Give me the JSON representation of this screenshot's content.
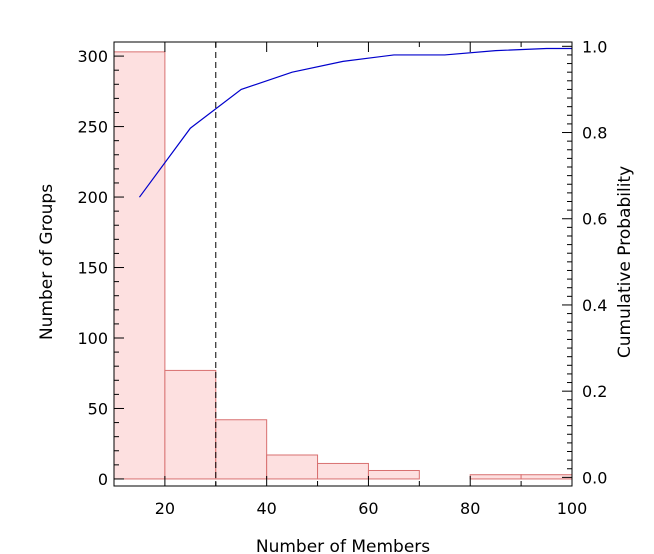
{
  "chart_data": {
    "type": "bar",
    "title": "",
    "xlabel": "Number of Members",
    "ylabel": "Number of Groups",
    "y2label": "Cumulative Probability",
    "xlim": [
      10,
      100
    ],
    "ylim": [
      -5,
      310
    ],
    "y2lim": [
      -0.02,
      1.01
    ],
    "xticks": [
      20,
      40,
      60,
      80,
      100
    ],
    "yticks": [
      0,
      50,
      100,
      150,
      200,
      250,
      300
    ],
    "y2ticks": [
      0.0,
      0.2,
      0.4,
      0.6,
      0.8,
      1.0
    ],
    "bins": [
      {
        "x0": 10,
        "x1": 20,
        "value": 303
      },
      {
        "x0": 20,
        "x1": 30,
        "value": 77
      },
      {
        "x0": 30,
        "x1": 40,
        "value": 42
      },
      {
        "x0": 40,
        "x1": 50,
        "value": 17
      },
      {
        "x0": 50,
        "x1": 60,
        "value": 11
      },
      {
        "x0": 60,
        "x1": 70,
        "value": 6
      },
      {
        "x0": 70,
        "x1": 80,
        "value": 0
      },
      {
        "x0": 80,
        "x1": 90,
        "value": 3
      },
      {
        "x0": 90,
        "x1": 100,
        "value": 3
      }
    ],
    "cumulative": {
      "x": [
        15,
        25,
        35,
        45,
        55,
        65,
        75,
        85,
        95,
        100
      ],
      "y": [
        0.65,
        0.81,
        0.9,
        0.94,
        0.965,
        0.98,
        0.98,
        0.99,
        0.995,
        0.995
      ]
    },
    "threshold_x": 30,
    "grid": false,
    "colors": {
      "bar_fill": "#fde0e0",
      "bar_stroke": "#d87070",
      "cumulative_line": "#0000cc",
      "threshold_line": "#000000",
      "axis": "#000000"
    }
  }
}
